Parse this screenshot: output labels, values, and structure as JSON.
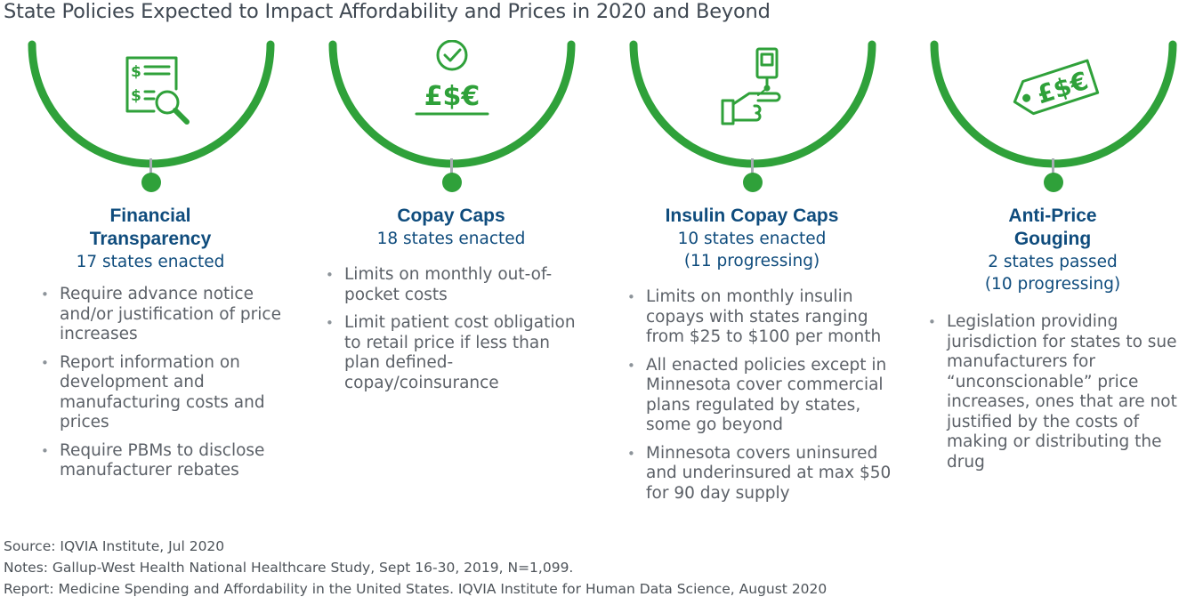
{
  "title": "State Policies Expected to Impact Affordability and Prices in 2020 and Beyond",
  "colors": {
    "accent_green": "#2fa13a",
    "heading_blue": "#0f4c7d",
    "stem_gray": "#a7adb3"
  },
  "policies": [
    {
      "icon": "document-magnifier-icon",
      "name": "Financial Transparency",
      "status_lines": [
        "17 states enacted"
      ],
      "bullets": [
        "Require advance notice and/or justification of price increases",
        "Report information on development and manufacturing costs and prices",
        "Require PBMs to disclose manufacturer rebates"
      ]
    },
    {
      "icon": "currency-check-icon",
      "icon_glyphs": "£$€",
      "name": "Copay Caps",
      "status_lines": [
        "18 states enacted"
      ],
      "bullets": [
        "Limits on monthly out-of-pocket costs",
        "Limit patient cost obligation to retail price if less than plan defined-copay/coinsurance"
      ]
    },
    {
      "icon": "insulin-hand-icon",
      "name": "Insulin Copay Caps",
      "status_lines": [
        "10 states enacted",
        "(11 progressing)"
      ],
      "bullets": [
        "Limits on monthly insulin copays with states ranging from $25 to $100 per month",
        "All enacted policies except in Minnesota cover commercial plans regulated by states, some go beyond",
        "Minnesota covers uninsured and underinsured at max $50 for 90 day supply"
      ]
    },
    {
      "icon": "price-tag-icon",
      "icon_glyphs": "£$€",
      "name": "Anti-Price Gouging",
      "status_lines": [
        "2 states passed",
        "(10 progressing)"
      ],
      "bullets": [
        "Legislation providing jurisdiction for states to sue manufacturers for “unconscionable” price increases, ones that are not justified by the costs of making or distributing the drug"
      ]
    }
  ],
  "footer": {
    "source": "Source: IQVIA Institute, Jul 2020",
    "notes": "Notes: Gallup-West Health National Healthcare Study, Sept 16-30, 2019, N=1,099.",
    "report": "Report: Medicine Spending and Affordability in the United States. IQVIA Institute for Human Data Science, August 2020"
  }
}
